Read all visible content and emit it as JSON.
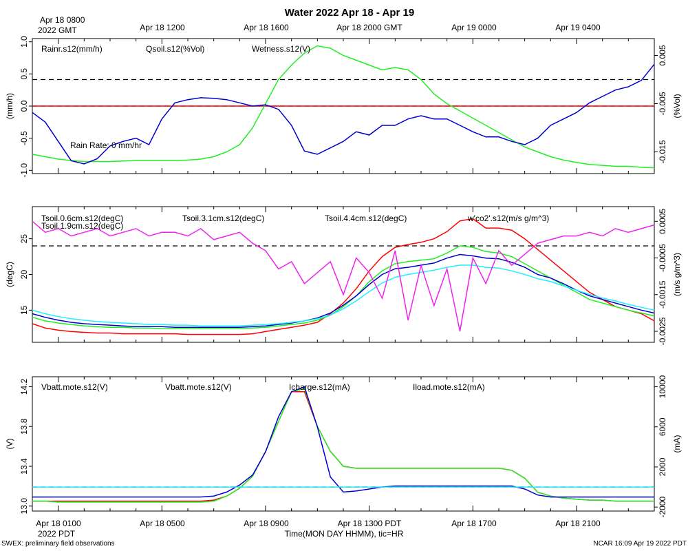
{
  "title": "Water 2022 Apr 18 - Apr 19",
  "top_axis": {
    "first_line1": "Apr 18 0800",
    "first_line2": "2022 GMT",
    "labels": [
      "Apr 18 1200",
      "Apr 18 1600",
      "Apr 18 2000 GMT",
      "Apr 19 0000",
      "Apr 19 0400"
    ]
  },
  "bottom_axis": {
    "labels": [
      "Apr 18 0100",
      "Apr 18 0500",
      "Apr 18 0900",
      "Apr 18 1300 PDT",
      "Apr 18 1700",
      "Apr 18 2100"
    ],
    "first_line2": "2022 PDT",
    "xlabel": "Time(MON DAY HHMM), tic=HR"
  },
  "footer": {
    "left": "SWEX: preliminary field observations",
    "right": "NCAR 16:09 Apr 19 2022 PDT"
  },
  "colors": {
    "red": "#ff0000",
    "green": "#22ee22",
    "blue": "#0000cc",
    "cyan": "#22eeff",
    "magenta": "#ee22ee",
    "black": "#000000"
  },
  "chart_data": [
    {
      "type": "line",
      "name": "panel-1",
      "x": [
        0,
        0.5,
        1,
        1.5,
        2,
        2.5,
        3,
        3.5,
        4,
        4.5,
        5,
        5.5,
        6,
        6.5,
        7,
        7.5,
        8,
        8.5,
        9,
        9.5,
        10,
        10.5,
        11,
        11.5,
        12,
        12.5,
        13,
        13.5,
        14,
        14.5,
        15,
        15.5,
        16,
        16.5,
        17,
        17.5,
        18,
        18.5,
        19,
        19.5,
        20,
        20.5,
        21,
        21.5,
        22,
        22.5,
        23,
        23.5,
        24
      ],
      "x_unit": "hours since Apr 18 0000 PDT",
      "xlim": [
        0,
        24
      ],
      "ylabel_left": "(mm/h)",
      "ylabel_right": "(%Vol)",
      "ylim_left": [
        -1.05,
        1.05
      ],
      "yticks_left": [
        -1.0,
        -0.5,
        0.0,
        0.5,
        1.0
      ],
      "ylim_right": [
        -0.0195,
        0.0085
      ],
      "yticks_right": [
        -0.015,
        -0.005,
        0.005
      ],
      "series": [
        {
          "name": "Rainr.s12(mm/h)",
          "color": "red",
          "axis": "left",
          "values": [
            0,
            0,
            0,
            0,
            0,
            0,
            0,
            0,
            0,
            0,
            0,
            0,
            0,
            0,
            0,
            0,
            0,
            0,
            0,
            0,
            0,
            0,
            0,
            0,
            0,
            0,
            0,
            0,
            0,
            0,
            0,
            0,
            0,
            0,
            0,
            0,
            0,
            0,
            0,
            0,
            0,
            0,
            0,
            0,
            0,
            0,
            0,
            0,
            0
          ]
        },
        {
          "name": "Qsoil.s12(%Vol)",
          "color": "green",
          "axis": "right",
          "values": [
            -0.0155,
            -0.016,
            -0.0165,
            -0.0168,
            -0.017,
            -0.017,
            -0.017,
            -0.0169,
            -0.0168,
            -0.0168,
            -0.0168,
            -0.0168,
            -0.0167,
            -0.0165,
            -0.016,
            -0.015,
            -0.0135,
            -0.01,
            -0.005,
            0.0,
            0.003,
            0.0055,
            0.007,
            0.0065,
            0.005,
            0.004,
            0.003,
            0.002,
            0.0025,
            0.002,
            0.0,
            -0.003,
            -0.005,
            -0.0065,
            -0.008,
            -0.0095,
            -0.011,
            -0.0125,
            -0.014,
            -0.015,
            -0.016,
            -0.0167,
            -0.0172,
            -0.0176,
            -0.0178,
            -0.018,
            -0.018,
            -0.0182,
            -0.0183
          ]
        },
        {
          "name": "Wetness.s12(V)",
          "color": "blue",
          "axis": "left",
          "values": [
            -0.1,
            -0.25,
            -0.55,
            -0.85,
            -0.9,
            -0.82,
            -0.62,
            -0.55,
            -0.5,
            -0.6,
            -0.2,
            0.05,
            0.1,
            0.13,
            0.12,
            0.1,
            0.05,
            0.0,
            0.02,
            -0.05,
            -0.3,
            -0.7,
            -0.75,
            -0.65,
            -0.55,
            -0.4,
            -0.45,
            -0.3,
            -0.3,
            -0.2,
            -0.15,
            -0.2,
            -0.2,
            -0.3,
            -0.4,
            -0.48,
            -0.48,
            -0.55,
            -0.6,
            -0.5,
            -0.3,
            -0.2,
            -0.1,
            0.05,
            0.15,
            0.25,
            0.3,
            0.4,
            0.65
          ]
        }
      ],
      "annotations": [
        "Rain Rate: 0 mm/hr"
      ],
      "reference_lines": [
        {
          "axis": "right",
          "y": 0.0,
          "style": "dashed"
        },
        {
          "axis": "left",
          "y": 0.0,
          "style": "dashed"
        }
      ]
    },
    {
      "type": "line",
      "name": "panel-2",
      "x": [
        0,
        0.5,
        1,
        1.5,
        2,
        2.5,
        3,
        3.5,
        4,
        4.5,
        5,
        5.5,
        6,
        6.5,
        7,
        7.5,
        8,
        8.5,
        9,
        9.5,
        10,
        10.5,
        11,
        11.5,
        12,
        12.5,
        13,
        13.5,
        14,
        14.5,
        15,
        15.5,
        16,
        16.5,
        17,
        17.5,
        18,
        18.5,
        19,
        19.5,
        20,
        20.5,
        21,
        21.5,
        22,
        22.5,
        23,
        23.5,
        24
      ],
      "xlim": [
        0,
        24
      ],
      "ylabel_left": "(degC)",
      "ylabel_right": "(m/s g/m^3)",
      "ylim_left": [
        10.5,
        29.5
      ],
      "yticks_left": [
        15,
        20,
        25
      ],
      "ylim_right": [
        -0.0028,
        0.0009
      ],
      "yticks_right": [
        -0.0025,
        -0.0015,
        -0.0005,
        0.0005
      ],
      "series": [
        {
          "name": "Tsoil.0.6cm.s12(degC)",
          "color": "red",
          "axis": "left",
          "values": [
            13.1,
            12.5,
            12.2,
            12.0,
            11.9,
            11.8,
            11.8,
            11.7,
            11.7,
            11.7,
            11.7,
            11.7,
            11.6,
            11.6,
            11.6,
            11.6,
            11.6,
            11.7,
            12.0,
            12.3,
            12.6,
            12.9,
            13.3,
            14.5,
            16.0,
            18.0,
            20.5,
            22.5,
            23.8,
            24.2,
            24.5,
            25.0,
            26.0,
            27.5,
            27.8,
            26.5,
            26.5,
            26.2,
            25.0,
            23.5,
            22.0,
            20.5,
            19.0,
            17.5,
            16.5,
            15.5,
            15.0,
            14.5,
            13.5
          ]
        },
        {
          "name": "Tsoil.1.9cm.s12(degC)",
          "color": "green",
          "axis": "left",
          "values": [
            14.0,
            13.5,
            13.2,
            13.0,
            12.8,
            12.7,
            12.6,
            12.6,
            12.5,
            12.5,
            12.4,
            12.4,
            12.4,
            12.4,
            12.4,
            12.4,
            12.4,
            12.5,
            12.6,
            12.8,
            13.0,
            13.2,
            13.6,
            14.3,
            15.5,
            17.0,
            19.0,
            20.5,
            21.5,
            21.8,
            22.0,
            22.2,
            23.0,
            24.0,
            23.8,
            23.2,
            23.0,
            22.5,
            21.5,
            20.5,
            19.5,
            18.5,
            17.5,
            16.5,
            16.0,
            15.5,
            15.0,
            14.6,
            14.2
          ]
        },
        {
          "name": "Tsoil.3.1cm.s12(degC)",
          "color": "blue",
          "axis": "left",
          "values": [
            14.5,
            14.0,
            13.6,
            13.3,
            13.1,
            13.0,
            12.9,
            12.8,
            12.7,
            12.7,
            12.7,
            12.6,
            12.6,
            12.6,
            12.6,
            12.6,
            12.6,
            12.7,
            12.8,
            13.0,
            13.2,
            13.5,
            13.9,
            14.6,
            15.7,
            17.0,
            18.6,
            20.0,
            20.8,
            21.0,
            21.3,
            21.6,
            22.3,
            22.8,
            22.6,
            22.3,
            22.2,
            21.7,
            21.0,
            20.0,
            19.5,
            18.7,
            17.8,
            17.0,
            16.5,
            16.0,
            15.5,
            15.0,
            14.6
          ]
        },
        {
          "name": "Tsoil.4.4cm.s12(degC)",
          "color": "cyan",
          "axis": "left",
          "values": [
            15.0,
            14.5,
            14.1,
            13.8,
            13.6,
            13.4,
            13.3,
            13.2,
            13.1,
            13.0,
            13.0,
            12.9,
            12.9,
            12.8,
            12.8,
            12.8,
            12.8,
            12.9,
            13.0,
            13.1,
            13.3,
            13.5,
            13.8,
            14.3,
            15.2,
            16.3,
            17.6,
            18.8,
            19.6,
            20.0,
            20.3,
            20.6,
            21.0,
            21.3,
            21.3,
            21.0,
            20.9,
            20.5,
            20.0,
            19.4,
            19.0,
            18.4,
            17.8,
            17.2,
            16.7,
            16.3,
            15.8,
            15.4,
            15.0
          ]
        },
        {
          "name": "w'co2'.s12(m/s g/m^3)",
          "color": "magenta",
          "axis": "right",
          "values": [
            0.0005,
            0.0002,
            0.0003,
            0.0001,
            0.0002,
            0.0003,
            0.0001,
            0.0002,
            0.0003,
            0.0001,
            0.0002,
            0.0002,
            0.0001,
            0.0003,
            0.0,
            0.0001,
            0.0002,
            -0.0001,
            -0.0003,
            -0.0008,
            -0.0006,
            -0.0012,
            -0.0009,
            -0.0006,
            -0.0015,
            -0.0005,
            -0.0009,
            -0.0016,
            -0.0003,
            -0.0022,
            -0.0007,
            -0.0018,
            -0.0008,
            -0.0025,
            -0.0005,
            -0.0012,
            -0.0003,
            -0.0007,
            -0.0004,
            -0.0001,
            0.0,
            0.0001,
            0.0001,
            0.0002,
            0.0001,
            0.0003,
            0.0002,
            0.0003,
            0.0004
          ]
        }
      ],
      "reference_lines": [
        {
          "axis": "left",
          "y": 24.0,
          "style": "dashed"
        }
      ]
    },
    {
      "type": "line",
      "name": "panel-3",
      "x": [
        0,
        0.5,
        1,
        1.5,
        2,
        2.5,
        3,
        3.5,
        4,
        4.5,
        5,
        5.5,
        6,
        6.5,
        7,
        7.5,
        8,
        8.5,
        9,
        9.5,
        10,
        10.5,
        11,
        11.5,
        12,
        12.5,
        13,
        13.5,
        14,
        14.5,
        15,
        15.5,
        16,
        16.5,
        17,
        17.5,
        18,
        18.5,
        19,
        19.5,
        20,
        20.5,
        21,
        21.5,
        22,
        22.5,
        23,
        23.5,
        24
      ],
      "xlim": [
        0,
        24
      ],
      "ylabel_left": "(V)",
      "ylabel_right": "(mA)",
      "ylim_left": [
        12.95,
        14.3
      ],
      "yticks_left": [
        13.0,
        13.4,
        13.8,
        14.2
      ],
      "ylim_right": [
        -2400,
        11000
      ],
      "yticks_right": [
        -2000,
        2000,
        6000,
        10000
      ],
      "series": [
        {
          "name": "Vbatt.mote.s12(V)",
          "color": "red",
          "axis": "left",
          "values": [
            13.05,
            13.05,
            13.05,
            13.05,
            13.05,
            13.05,
            13.05,
            13.05,
            13.05,
            13.05,
            13.05,
            13.05,
            13.05,
            13.05,
            13.06,
            13.1,
            13.18,
            13.3,
            13.55,
            13.85,
            14.15,
            14.15,
            13.8,
            13.55,
            13.4,
            13.38,
            13.38,
            13.38,
            13.38,
            13.38,
            13.38,
            13.38,
            13.38,
            13.38,
            13.38,
            13.38,
            13.38,
            13.36,
            13.28,
            13.14,
            13.1,
            13.08,
            13.07,
            13.06,
            13.06,
            13.05,
            13.05,
            13.05,
            13.05
          ]
        },
        {
          "name": "Vbatt.mote.s12(V)",
          "color": "green",
          "axis": "left",
          "values": [
            13.05,
            13.05,
            13.04,
            13.04,
            13.04,
            13.04,
            13.04,
            13.04,
            13.04,
            13.04,
            13.04,
            13.04,
            13.04,
            13.04,
            13.05,
            13.1,
            13.18,
            13.3,
            13.55,
            13.85,
            14.15,
            14.18,
            13.8,
            13.55,
            13.4,
            13.38,
            13.38,
            13.38,
            13.38,
            13.38,
            13.38,
            13.38,
            13.38,
            13.38,
            13.38,
            13.38,
            13.38,
            13.36,
            13.28,
            13.14,
            13.1,
            13.08,
            13.07,
            13.06,
            13.06,
            13.05,
            13.05,
            13.05,
            13.05
          ]
        },
        {
          "name": "Icharge.s12(mA)",
          "color": "blue",
          "axis": "right",
          "values": [
            -1000,
            -1000,
            -1000,
            -1000,
            -1000,
            -1000,
            -1000,
            -1000,
            -1000,
            -1000,
            -1000,
            -1000,
            -1000,
            -1000,
            -900,
            -500,
            200,
            1200,
            3500,
            7000,
            9500,
            10000,
            6000,
            1000,
            -500,
            -400,
            -200,
            0,
            100,
            100,
            100,
            100,
            100,
            100,
            100,
            100,
            100,
            100,
            -200,
            -800,
            -1000,
            -1000,
            -1000,
            -1000,
            -1000,
            -1000,
            -1000,
            -1000,
            -1000
          ]
        },
        {
          "name": "Iload.mote.s12(mA)",
          "color": "cyan",
          "axis": "right",
          "values": [
            0,
            0,
            0,
            0,
            0,
            0,
            0,
            0,
            0,
            0,
            0,
            0,
            0,
            0,
            0,
            0,
            0,
            0,
            0,
            0,
            0,
            0,
            0,
            0,
            0,
            0,
            0,
            0,
            0,
            0,
            0,
            0,
            0,
            0,
            0,
            0,
            0,
            0,
            0,
            0,
            0,
            0,
            0,
            0,
            0,
            0,
            0,
            0,
            0
          ]
        }
      ],
      "reference_lines": [
        {
          "axis": "right",
          "y": 0,
          "style": "dashed"
        }
      ]
    }
  ]
}
